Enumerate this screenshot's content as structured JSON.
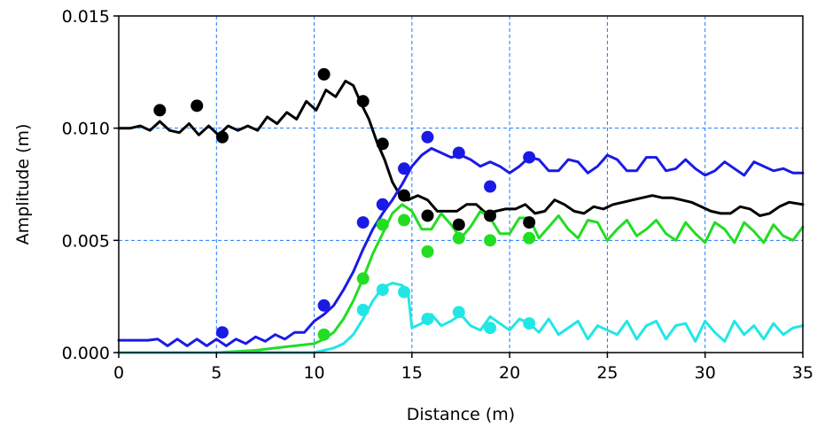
{
  "chart_data": {
    "type": "line",
    "title": "",
    "xlabel": "Distance (m)",
    "ylabel": "Amplitude (m)",
    "xlim": [
      0,
      35
    ],
    "ylim": [
      0,
      0.015
    ],
    "x_ticks": [
      0,
      5,
      10,
      15,
      20,
      25,
      30,
      35
    ],
    "x_tick_labels": [
      "0",
      "5",
      "10",
      "15",
      "20",
      "25",
      "30",
      "35"
    ],
    "y_ticks": [
      0,
      0.005,
      0.01,
      0.015
    ],
    "y_tick_labels": [
      "0.000",
      "0.005",
      "0.010",
      "0.015"
    ],
    "grid": true,
    "grid_style": "dashed",
    "grid_color": "#1e78ff",
    "legend": "none",
    "series": [
      {
        "color": "#000000",
        "line": [
          [
            0,
            0.01
          ],
          [
            0.6,
            0.01
          ],
          [
            1.1,
            0.0101
          ],
          [
            1.6,
            0.0099
          ],
          [
            2.1,
            0.0103
          ],
          [
            2.6,
            0.0099
          ],
          [
            3.1,
            0.0098
          ],
          [
            3.6,
            0.0102
          ],
          [
            4.1,
            0.0097
          ],
          [
            4.6,
            0.0101
          ],
          [
            5.1,
            0.0097
          ],
          [
            5.6,
            0.0101
          ],
          [
            6.1,
            0.0099
          ],
          [
            6.6,
            0.0101
          ],
          [
            7.1,
            0.0099
          ],
          [
            7.6,
            0.0105
          ],
          [
            8.1,
            0.0102
          ],
          [
            8.6,
            0.0107
          ],
          [
            9.1,
            0.0104
          ],
          [
            9.6,
            0.0112
          ],
          [
            10.1,
            0.0108
          ],
          [
            10.6,
            0.0117
          ],
          [
            11.1,
            0.0114
          ],
          [
            11.6,
            0.0121
          ],
          [
            12.0,
            0.0119
          ],
          [
            12.4,
            0.0111
          ],
          [
            12.8,
            0.0104
          ],
          [
            13.2,
            0.0094
          ],
          [
            13.6,
            0.0086
          ],
          [
            14.0,
            0.0076
          ],
          [
            14.4,
            0.007
          ],
          [
            14.8,
            0.0068
          ],
          [
            15.3,
            0.007
          ],
          [
            15.8,
            0.0068
          ],
          [
            16.3,
            0.0063
          ],
          [
            16.8,
            0.0063
          ],
          [
            17.3,
            0.0063
          ],
          [
            17.8,
            0.0066
          ],
          [
            18.3,
            0.0066
          ],
          [
            18.8,
            0.0062
          ],
          [
            19.3,
            0.0063
          ],
          [
            19.8,
            0.0064
          ],
          [
            20.3,
            0.0064
          ],
          [
            20.8,
            0.0066
          ],
          [
            21.3,
            0.0062
          ],
          [
            21.8,
            0.0063
          ],
          [
            22.3,
            0.0068
          ],
          [
            22.8,
            0.0066
          ],
          [
            23.3,
            0.0063
          ],
          [
            23.8,
            0.0062
          ],
          [
            24.3,
            0.0065
          ],
          [
            24.8,
            0.0064
          ],
          [
            25.3,
            0.0066
          ],
          [
            25.8,
            0.0067
          ],
          [
            26.3,
            0.0068
          ],
          [
            26.8,
            0.0069
          ],
          [
            27.3,
            0.007
          ],
          [
            27.8,
            0.0069
          ],
          [
            28.3,
            0.0069
          ],
          [
            28.8,
            0.0068
          ],
          [
            29.3,
            0.0067
          ],
          [
            29.8,
            0.0065
          ],
          [
            30.3,
            0.0063
          ],
          [
            30.8,
            0.0062
          ],
          [
            31.3,
            0.0062
          ],
          [
            31.8,
            0.0065
          ],
          [
            32.3,
            0.0064
          ],
          [
            32.8,
            0.0061
          ],
          [
            33.3,
            0.0062
          ],
          [
            33.8,
            0.0065
          ],
          [
            34.3,
            0.0067
          ],
          [
            35,
            0.0066
          ]
        ],
        "points": [
          [
            2.1,
            0.0108
          ],
          [
            4.0,
            0.011
          ],
          [
            5.3,
            0.0096
          ],
          [
            10.5,
            0.0124
          ],
          [
            12.5,
            0.0112
          ],
          [
            13.5,
            0.0093
          ],
          [
            14.6,
            0.007
          ],
          [
            15.8,
            0.0061
          ],
          [
            17.4,
            0.0057
          ],
          [
            19.0,
            0.0061
          ],
          [
            21.0,
            0.0058
          ]
        ]
      },
      {
        "color": "#1a1ae6",
        "line": [
          [
            0,
            0.00055
          ],
          [
            1.5,
            0.00055
          ],
          [
            2.0,
            0.0006
          ],
          [
            2.5,
            0.0003
          ],
          [
            3.0,
            0.0006
          ],
          [
            3.5,
            0.0003
          ],
          [
            4.0,
            0.0006
          ],
          [
            4.5,
            0.0003
          ],
          [
            5.0,
            0.0006
          ],
          [
            5.5,
            0.0003
          ],
          [
            6.0,
            0.0006
          ],
          [
            6.5,
            0.0004
          ],
          [
            7.0,
            0.0007
          ],
          [
            7.5,
            0.0005
          ],
          [
            8.0,
            0.0008
          ],
          [
            8.5,
            0.0006
          ],
          [
            9.0,
            0.0009
          ],
          [
            9.5,
            0.0009
          ],
          [
            10.0,
            0.0014
          ],
          [
            10.5,
            0.0017
          ],
          [
            11.0,
            0.0021
          ],
          [
            11.5,
            0.0028
          ],
          [
            12.0,
            0.0036
          ],
          [
            12.5,
            0.0046
          ],
          [
            13.0,
            0.0055
          ],
          [
            13.5,
            0.0062
          ],
          [
            14.0,
            0.0068
          ],
          [
            14.5,
            0.0075
          ],
          [
            15.0,
            0.0083
          ],
          [
            15.5,
            0.0088
          ],
          [
            16.0,
            0.0091
          ],
          [
            16.5,
            0.0089
          ],
          [
            17.0,
            0.0087
          ],
          [
            17.5,
            0.0088
          ],
          [
            18.0,
            0.0086
          ],
          [
            18.5,
            0.0083
          ],
          [
            19.0,
            0.0085
          ],
          [
            19.5,
            0.0083
          ],
          [
            20.0,
            0.008
          ],
          [
            20.5,
            0.0083
          ],
          [
            21.0,
            0.0087
          ],
          [
            21.5,
            0.0086
          ],
          [
            22.0,
            0.0081
          ],
          [
            22.5,
            0.0081
          ],
          [
            23.0,
            0.0086
          ],
          [
            23.5,
            0.0085
          ],
          [
            24.0,
            0.008
          ],
          [
            24.5,
            0.0083
          ],
          [
            25.0,
            0.0088
          ],
          [
            25.5,
            0.0086
          ],
          [
            26.0,
            0.0081
          ],
          [
            26.5,
            0.0081
          ],
          [
            27.0,
            0.0087
          ],
          [
            27.5,
            0.0087
          ],
          [
            28.0,
            0.0081
          ],
          [
            28.5,
            0.0082
          ],
          [
            29.0,
            0.0086
          ],
          [
            29.5,
            0.0082
          ],
          [
            30.0,
            0.0079
          ],
          [
            30.5,
            0.0081
          ],
          [
            31.0,
            0.0085
          ],
          [
            31.5,
            0.0082
          ],
          [
            32.0,
            0.0079
          ],
          [
            32.5,
            0.0085
          ],
          [
            33.0,
            0.0083
          ],
          [
            33.5,
            0.0081
          ],
          [
            34.0,
            0.0082
          ],
          [
            34.5,
            0.008
          ],
          [
            35,
            0.008
          ]
        ],
        "points": [
          [
            5.3,
            0.0009
          ],
          [
            10.5,
            0.0021
          ],
          [
            12.5,
            0.0058
          ],
          [
            13.5,
            0.0066
          ],
          [
            14.6,
            0.0082
          ],
          [
            15.8,
            0.0096
          ],
          [
            17.4,
            0.0089
          ],
          [
            19.0,
            0.0074
          ],
          [
            21.0,
            0.0087
          ]
        ]
      },
      {
        "color": "#22dd22",
        "line": [
          [
            0,
            0.0
          ],
          [
            5.0,
            0.0
          ],
          [
            6.0,
            5e-05
          ],
          [
            7.0,
            0.0001
          ],
          [
            8.0,
            0.0002
          ],
          [
            9.0,
            0.0003
          ],
          [
            10.0,
            0.0004
          ],
          [
            10.5,
            0.0006
          ],
          [
            11.0,
            0.0009
          ],
          [
            11.5,
            0.0015
          ],
          [
            12.0,
            0.0023
          ],
          [
            12.5,
            0.0033
          ],
          [
            13.0,
            0.0044
          ],
          [
            13.5,
            0.0053
          ],
          [
            14.0,
            0.0062
          ],
          [
            14.5,
            0.0066
          ],
          [
            15.0,
            0.0063
          ],
          [
            15.5,
            0.0055
          ],
          [
            16.0,
            0.0055
          ],
          [
            16.5,
            0.0062
          ],
          [
            17.0,
            0.0057
          ],
          [
            17.5,
            0.0051
          ],
          [
            18.0,
            0.0056
          ],
          [
            18.5,
            0.0063
          ],
          [
            19.0,
            0.006
          ],
          [
            19.5,
            0.0053
          ],
          [
            20.0,
            0.0053
          ],
          [
            20.5,
            0.006
          ],
          [
            21.0,
            0.006
          ],
          [
            21.5,
            0.0051
          ],
          [
            22.0,
            0.0056
          ],
          [
            22.5,
            0.0061
          ],
          [
            23.0,
            0.0055
          ],
          [
            23.5,
            0.0051
          ],
          [
            24.0,
            0.0059
          ],
          [
            24.5,
            0.0058
          ],
          [
            25.0,
            0.005
          ],
          [
            25.5,
            0.0055
          ],
          [
            26.0,
            0.0059
          ],
          [
            26.5,
            0.0052
          ],
          [
            27.0,
            0.0055
          ],
          [
            27.5,
            0.0059
          ],
          [
            28.0,
            0.0053
          ],
          [
            28.5,
            0.005
          ],
          [
            29.0,
            0.0058
          ],
          [
            29.5,
            0.0053
          ],
          [
            30.0,
            0.0049
          ],
          [
            30.5,
            0.0058
          ],
          [
            31.0,
            0.0055
          ],
          [
            31.5,
            0.0049
          ],
          [
            32.0,
            0.0058
          ],
          [
            32.5,
            0.0054
          ],
          [
            33.0,
            0.0049
          ],
          [
            33.5,
            0.0057
          ],
          [
            34.0,
            0.0052
          ],
          [
            34.5,
            0.005
          ],
          [
            35,
            0.0056
          ]
        ],
        "points": [
          [
            10.5,
            0.0008
          ],
          [
            12.5,
            0.0033
          ],
          [
            13.5,
            0.0057
          ],
          [
            14.6,
            0.0059
          ],
          [
            15.8,
            0.0045
          ],
          [
            17.4,
            0.0051
          ],
          [
            19.0,
            0.005
          ],
          [
            21.0,
            0.0051
          ]
        ]
      },
      {
        "color": "#22e6e6",
        "line": [
          [
            0,
            0.0
          ],
          [
            10.0,
            0.0
          ],
          [
            10.5,
            0.0001
          ],
          [
            11.0,
            0.0002
          ],
          [
            11.5,
            0.0004
          ],
          [
            12.0,
            0.0008
          ],
          [
            12.5,
            0.0015
          ],
          [
            13.0,
            0.0023
          ],
          [
            13.5,
            0.0029
          ],
          [
            14.0,
            0.0031
          ],
          [
            14.5,
            0.003
          ],
          [
            14.8,
            0.0027
          ],
          [
            15.0,
            0.0011
          ],
          [
            15.5,
            0.0013
          ],
          [
            16.0,
            0.0017
          ],
          [
            16.5,
            0.0012
          ],
          [
            17.0,
            0.0014
          ],
          [
            17.5,
            0.0017
          ],
          [
            18.0,
            0.0012
          ],
          [
            18.5,
            0.001
          ],
          [
            19.0,
            0.0016
          ],
          [
            19.5,
            0.0013
          ],
          [
            20.0,
            0.001
          ],
          [
            20.5,
            0.0015
          ],
          [
            21.0,
            0.0013
          ],
          [
            21.5,
            0.0009
          ],
          [
            22.0,
            0.0015
          ],
          [
            22.5,
            0.0008
          ],
          [
            23.0,
            0.0011
          ],
          [
            23.5,
            0.0014
          ],
          [
            24.0,
            0.0006
          ],
          [
            24.5,
            0.0012
          ],
          [
            25.0,
            0.001
          ],
          [
            25.5,
            0.0008
          ],
          [
            26.0,
            0.0014
          ],
          [
            26.5,
            0.0006
          ],
          [
            27.0,
            0.0012
          ],
          [
            27.5,
            0.0014
          ],
          [
            28.0,
            0.0006
          ],
          [
            28.5,
            0.0012
          ],
          [
            29.0,
            0.0013
          ],
          [
            29.5,
            0.0005
          ],
          [
            30.0,
            0.0014
          ],
          [
            30.5,
            0.0009
          ],
          [
            31.0,
            0.0005
          ],
          [
            31.5,
            0.0014
          ],
          [
            32.0,
            0.0008
          ],
          [
            32.5,
            0.0012
          ],
          [
            33.0,
            0.0006
          ],
          [
            33.5,
            0.0013
          ],
          [
            34.0,
            0.0008
          ],
          [
            34.5,
            0.0011
          ],
          [
            35,
            0.0012
          ]
        ],
        "points": [
          [
            12.5,
            0.0019
          ],
          [
            13.5,
            0.0028
          ],
          [
            14.6,
            0.0027
          ],
          [
            15.8,
            0.0015
          ],
          [
            17.4,
            0.0018
          ],
          [
            19.0,
            0.0011
          ],
          [
            21.0,
            0.0013
          ]
        ]
      }
    ]
  }
}
